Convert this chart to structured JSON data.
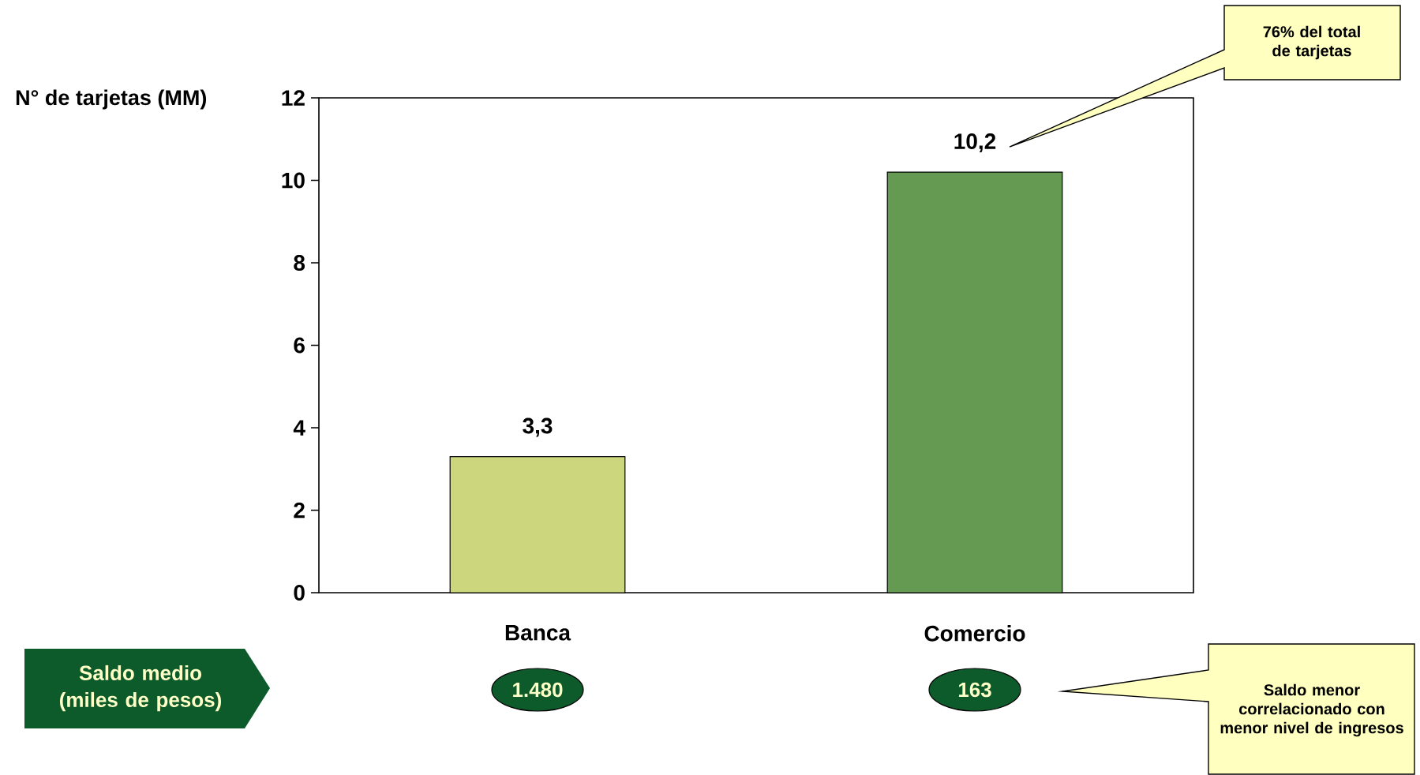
{
  "chart_data": {
    "type": "bar",
    "ylabel": "N° de tarjetas (MM)",
    "categories": [
      "Banca",
      "Comercio"
    ],
    "values": [
      3.3,
      10.2
    ],
    "colors": [
      "#ccd67c",
      "#659a52"
    ],
    "value_labels": [
      "3,3",
      "10,2"
    ],
    "ylim": [
      0,
      12
    ],
    "yticks": [
      0,
      2,
      4,
      6,
      8,
      10,
      12
    ],
    "annotations": [
      "76% del total de tarjetas",
      "Saldo medio (miles de pesos)",
      "1.480",
      "163",
      "Saldo menor correlacionado con menor nivel de ingresos"
    ]
  }
}
